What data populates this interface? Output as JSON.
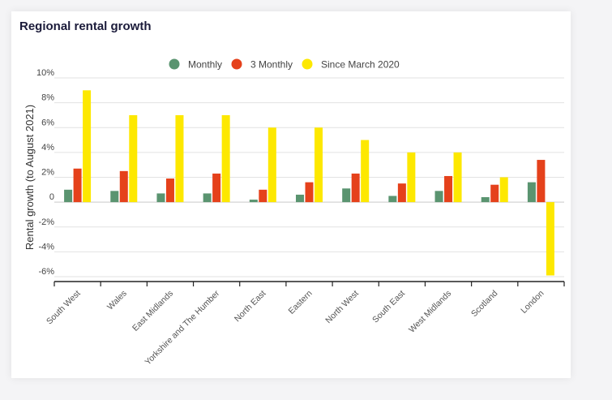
{
  "chart_data": {
    "type": "bar",
    "title": "Regional rental growth",
    "ylabel": "Rental growth (to August 2021)",
    "xlabel": "",
    "ylim": [
      -6,
      10
    ],
    "y_ticks": [
      "10%",
      "8%",
      "6%",
      "4%",
      "2%",
      "0",
      "-2%",
      "-4%",
      "-6%"
    ],
    "y_tick_values": [
      10,
      8,
      6,
      4,
      2,
      0,
      -2,
      -4,
      -6
    ],
    "grid": true,
    "legend_position": "top-center",
    "categories": [
      "South West",
      "Wales",
      "East Midlands",
      "Yorkshire and The Humber",
      "North East",
      "Eastern",
      "North West",
      "South East",
      "West Midlands",
      "Scotland",
      "London"
    ],
    "series": [
      {
        "name": "Monthly",
        "color": "#5a9470",
        "values": [
          1.0,
          0.9,
          0.7,
          0.7,
          0.2,
          0.6,
          1.1,
          0.5,
          0.9,
          0.4,
          1.6
        ]
      },
      {
        "name": "3 Monthly",
        "color": "#e5411b",
        "values": [
          2.7,
          2.5,
          1.9,
          2.3,
          1.0,
          1.6,
          2.3,
          1.5,
          2.1,
          1.4,
          3.4
        ]
      },
      {
        "name": "Since March 2020",
        "color": "#fde800",
        "values": [
          9.0,
          7.0,
          7.0,
          7.0,
          6.0,
          6.0,
          5.0,
          4.0,
          4.0,
          2.0,
          -5.9
        ]
      }
    ]
  }
}
